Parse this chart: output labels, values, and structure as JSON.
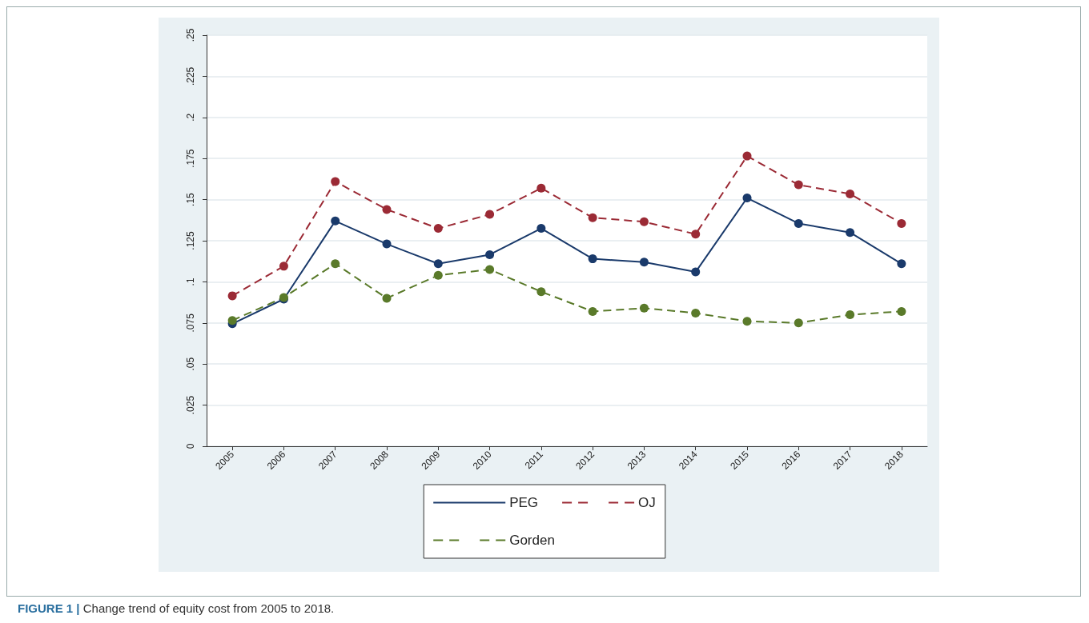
{
  "chart_data": {
    "type": "line",
    "categories": [
      "2005",
      "2006",
      "2007",
      "2008",
      "2009",
      "2010",
      "2011",
      "2012",
      "2013",
      "2014",
      "2015",
      "2016",
      "2017",
      "2018"
    ],
    "series": [
      {
        "name": "PEG",
        "color": "#1a3a6b",
        "line_style": "solid",
        "values": [
          0.0745,
          0.0895,
          0.137,
          0.123,
          0.111,
          0.1165,
          0.1325,
          0.114,
          0.112,
          0.106,
          0.151,
          0.1355,
          0.13,
          0.111
        ]
      },
      {
        "name": "OJ",
        "color": "#9b2a35",
        "line_style": "dashed",
        "values": [
          0.0915,
          0.1095,
          0.161,
          0.144,
          0.1325,
          0.141,
          0.157,
          0.139,
          0.1365,
          0.129,
          0.1765,
          0.159,
          0.1535,
          0.1355
        ]
      },
      {
        "name": "Gorden",
        "color": "#5a7a2a",
        "line_style": "dashed",
        "values": [
          0.0765,
          0.0905,
          0.111,
          0.09,
          0.104,
          0.1075,
          0.094,
          0.082,
          0.084,
          0.081,
          0.076,
          0.075,
          0.08,
          0.082
        ]
      }
    ],
    "ylim": [
      0,
      0.25
    ],
    "yticks": [
      {
        "value": 0,
        "label": "0"
      },
      {
        "value": 0.025,
        "label": ".025"
      },
      {
        "value": 0.05,
        "label": ".05"
      },
      {
        "value": 0.075,
        "label": ".075"
      },
      {
        "value": 0.1,
        "label": ".1"
      },
      {
        "value": 0.125,
        "label": ".125"
      },
      {
        "value": 0.15,
        "label": ".15"
      },
      {
        "value": 0.175,
        "label": ".175"
      },
      {
        "value": 0.2,
        "label": ".2"
      },
      {
        "value": 0.225,
        "label": ".225"
      },
      {
        "value": 0.25,
        "label": ".25"
      }
    ],
    "grid": "y",
    "legend": "bottom",
    "marker": "circle",
    "annotations": [
      "FIGURE 1 | Change trend of equity cost from 2005 to 2018."
    ]
  }
}
